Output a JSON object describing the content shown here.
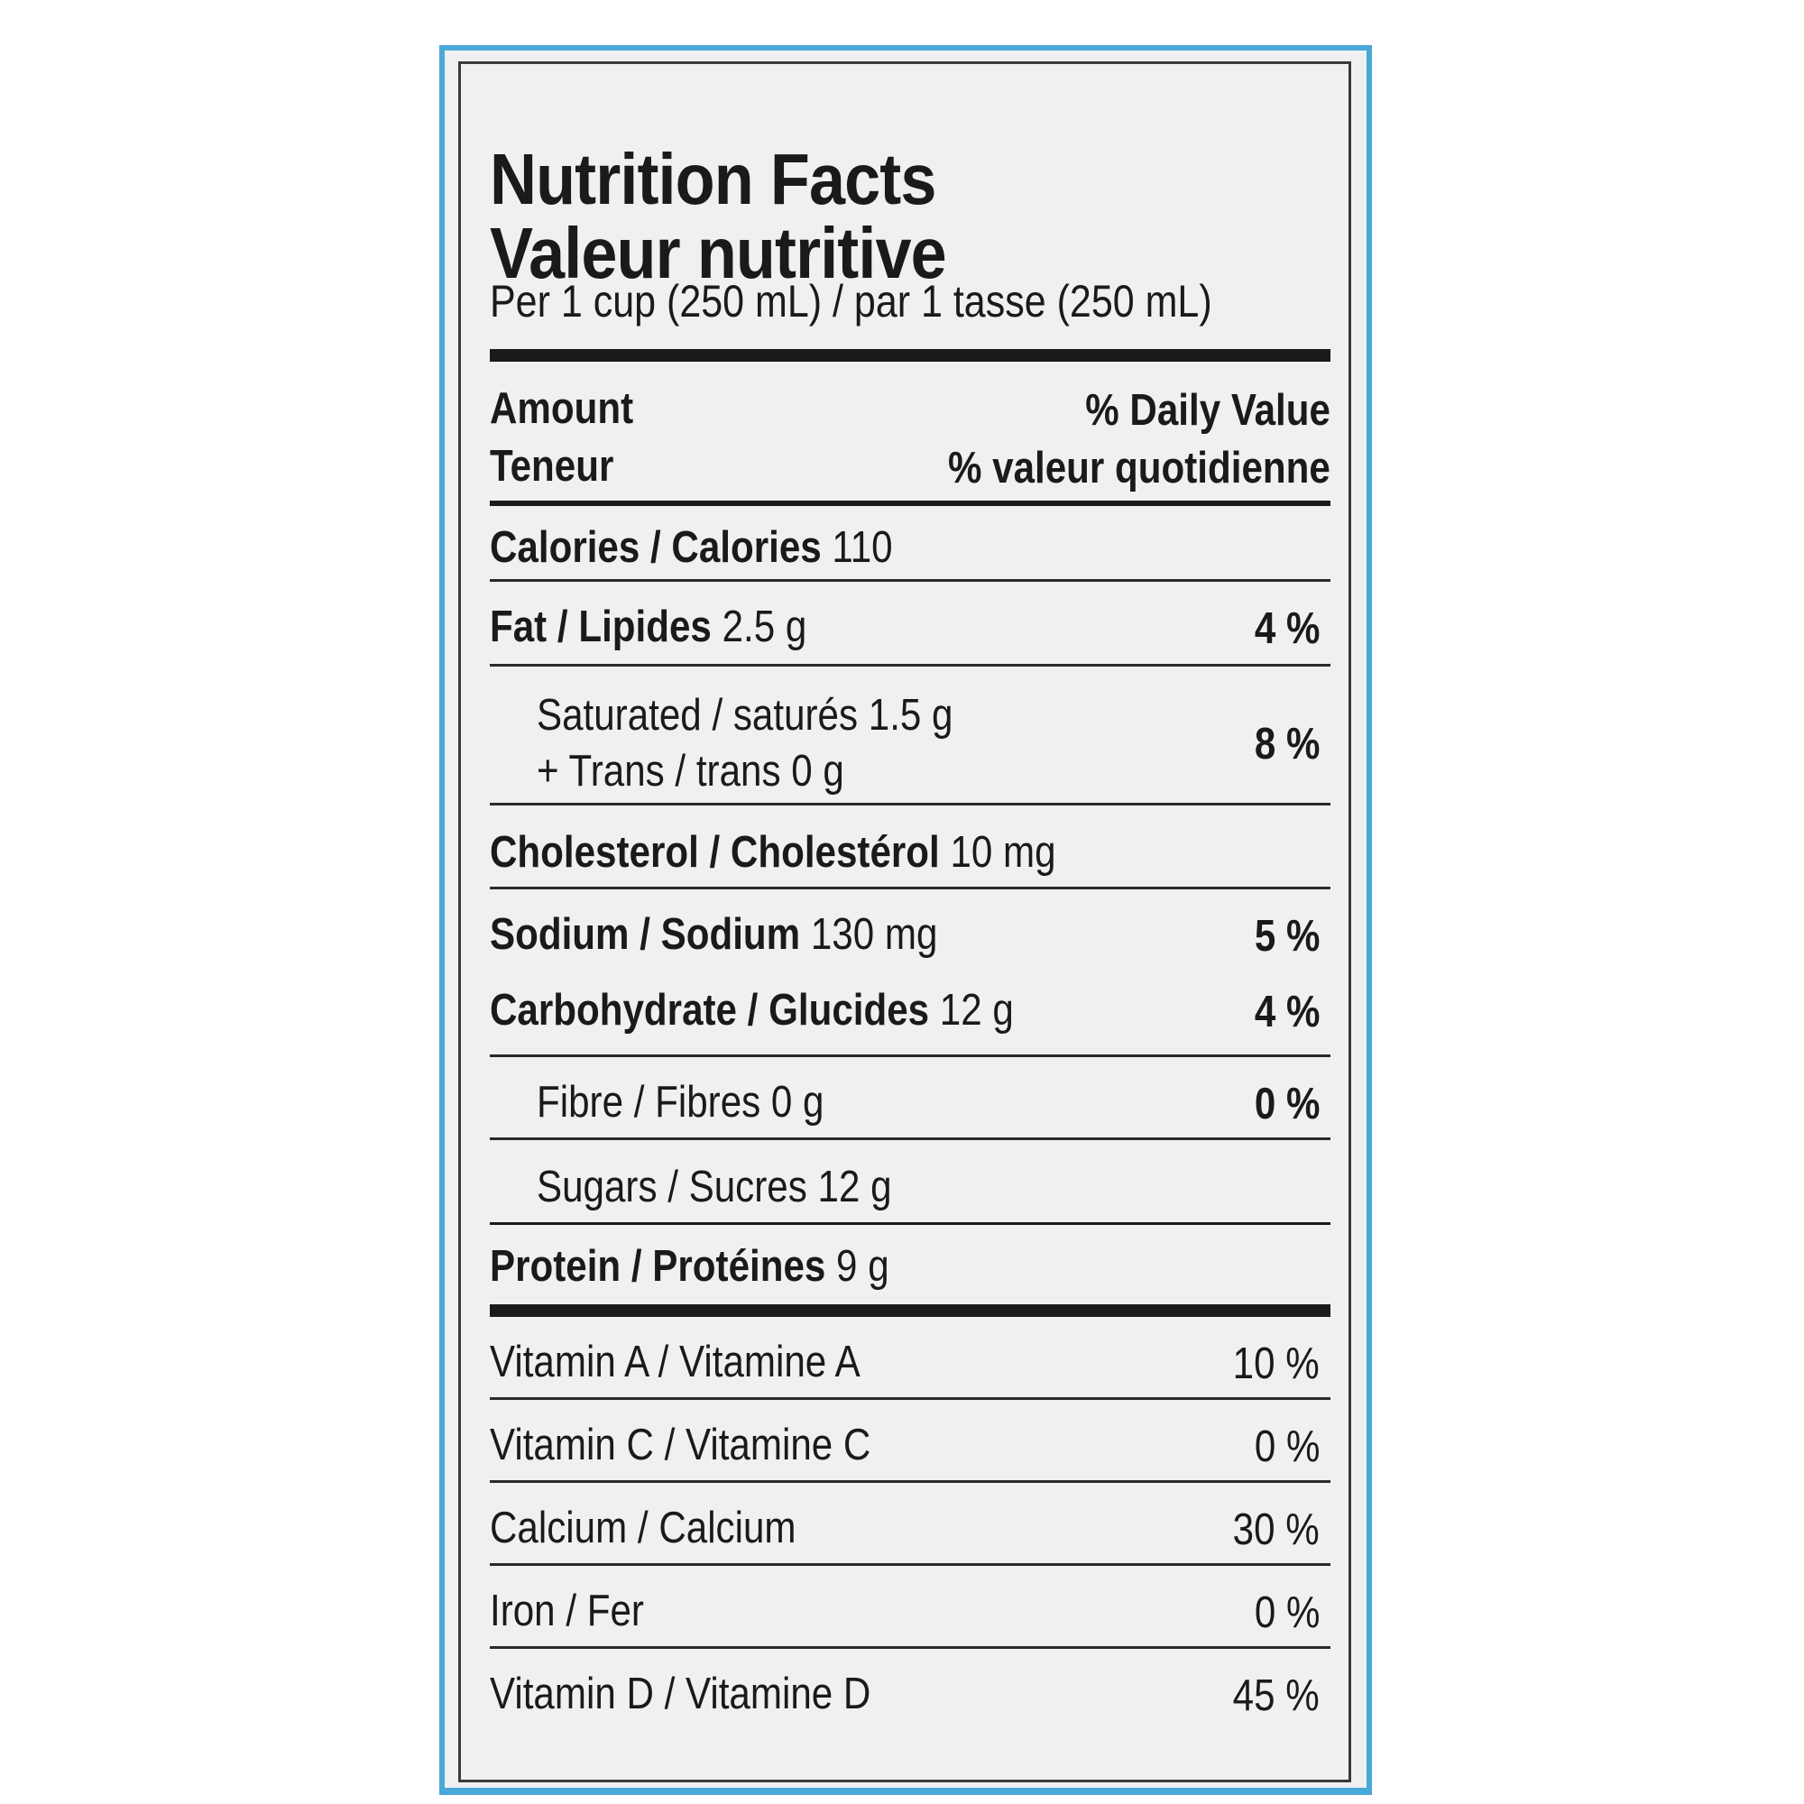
{
  "title_en": "Nutrition Facts",
  "title_fr": "Valeur nutritive",
  "serving": "Per 1 cup (250 mL) / par 1 tasse (250 mL)",
  "header": {
    "amount_en": "Amount",
    "amount_fr": "Teneur",
    "dv_en": "% Daily Value",
    "dv_fr": "% valeur quotidienne"
  },
  "calories": {
    "label": "Calories / Calories",
    "value": "110"
  },
  "fat": {
    "label": "Fat / Lipides",
    "amount": "2.5 g",
    "dv": "4 %"
  },
  "saturated": {
    "line1": "Saturated / saturés 1.5 g",
    "line2": "+ Trans / trans 0 g",
    "dv": "8 %"
  },
  "cholesterol": {
    "label": "Cholesterol / Cholestérol",
    "amount": "10 mg"
  },
  "sodium": {
    "label": "Sodium / Sodium",
    "amount": "130 mg",
    "dv": "5 %"
  },
  "carbohydrate": {
    "label": "Carbohydrate / Glucides",
    "amount": "12 g",
    "dv": "4 %"
  },
  "fibre": {
    "label": "Fibre / Fibres 0 g",
    "dv": "0 %"
  },
  "sugars": {
    "label": "Sugars / Sucres 12 g"
  },
  "protein": {
    "label": "Protein / Protéines",
    "amount": "9 g"
  },
  "vitamins": [
    {
      "name": "Vitamin A / Vitamine A",
      "dv": "10 %"
    },
    {
      "name": "Vitamin C / Vitamine C",
      "dv": "0 %"
    },
    {
      "name": "Calcium / Calcium",
      "dv": "30 %"
    },
    {
      "name": "Iron / Fer",
      "dv": "0 %"
    },
    {
      "name": "Vitamin D / Vitamine D",
      "dv": "45 %"
    }
  ],
  "colors": {
    "panel_border": "#4aa8d8",
    "label_bg": "#eff0f2",
    "ink": "#1a1a1a"
  }
}
